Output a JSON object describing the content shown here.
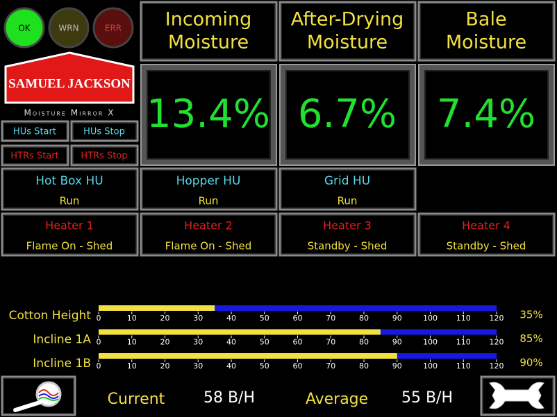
{
  "indicators": [
    {
      "label": "OK"
    },
    {
      "label": "WRN"
    },
    {
      "label": "ERR"
    }
  ],
  "logo": {
    "brand": "SAMUEL JACKSON",
    "product": "Moisture Mirror X"
  },
  "buttons": [
    "HUs Start",
    "HUs Stop",
    "HTRs Start",
    "HTRs Stop"
  ],
  "moisture": [
    {
      "title": [
        "Incoming",
        "Moisture"
      ],
      "value": "13.4%"
    },
    {
      "title": [
        "After-Drying",
        "Moisture"
      ],
      "value": "6.7%"
    },
    {
      "title": [
        "Bale",
        "Moisture"
      ],
      "value": "7.4%"
    }
  ],
  "units": [
    {
      "name": "Hot Box HU",
      "status": "Run"
    },
    {
      "name": "Hopper HU",
      "status": "Run"
    },
    {
      "name": "Grid HU",
      "status": "Run"
    }
  ],
  "heaters": [
    {
      "name": "Heater 1",
      "status": "Flame On - Shed"
    },
    {
      "name": "Heater 2",
      "status": "Flame On - Shed"
    },
    {
      "name": "Heater 3",
      "status": "Standby - Shed"
    },
    {
      "name": "Heater 4",
      "status": "Standby - Shed"
    }
  ],
  "gauges": {
    "xlim": [
      0,
      120
    ],
    "xticks": [
      0,
      10,
      20,
      30,
      40,
      50,
      60,
      70,
      80,
      90,
      100,
      110,
      120
    ],
    "items": [
      {
        "label": "Cotton Height",
        "value": 35,
        "value_label": "35%"
      },
      {
        "label": "Incline 1A",
        "value": 85,
        "value_label": "85%"
      },
      {
        "label": "Incline 1B",
        "value": 90,
        "value_label": "90%"
      }
    ]
  },
  "production": {
    "current_label": "Current",
    "current": "58 B/H",
    "average_label": "Average",
    "average": "55 B/H"
  }
}
